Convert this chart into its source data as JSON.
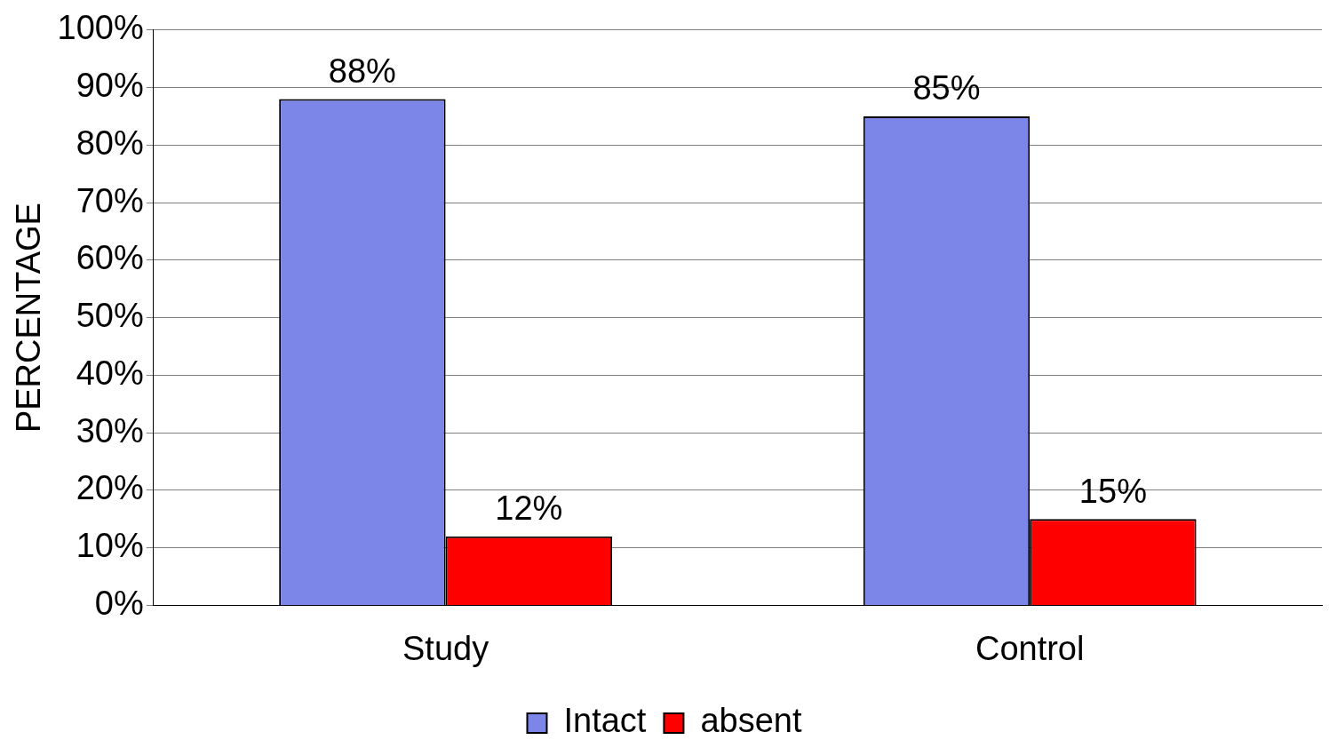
{
  "chart_data": {
    "type": "bar",
    "ylabel": "PERCENTAGE",
    "categories": [
      "Study",
      "Control"
    ],
    "series": [
      {
        "name": "Intact",
        "color": "#7b86e8",
        "values": [
          88,
          85
        ],
        "value_labels": [
          "88%",
          "85%"
        ]
      },
      {
        "name": "absent",
        "color": "#ff0000",
        "values": [
          12,
          15
        ],
        "value_labels": [
          "12%",
          "15%"
        ]
      }
    ],
    "ylim": [
      0,
      100
    ],
    "yticks": [
      {
        "value": 0,
        "label": "0%"
      },
      {
        "value": 10,
        "label": "10%"
      },
      {
        "value": 20,
        "label": "20%"
      },
      {
        "value": 30,
        "label": "30%"
      },
      {
        "value": 40,
        "label": "40%"
      },
      {
        "value": 50,
        "label": "50%"
      },
      {
        "value": 60,
        "label": "60%"
      },
      {
        "value": 70,
        "label": "70%"
      },
      {
        "value": 80,
        "label": "80%"
      },
      {
        "value": 90,
        "label": "90%"
      },
      {
        "value": 100,
        "label": "100%"
      }
    ],
    "grid": "y",
    "legend": "bottom"
  }
}
